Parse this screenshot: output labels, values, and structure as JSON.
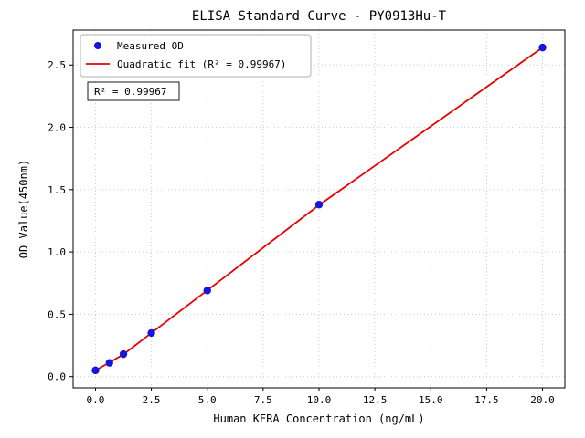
{
  "chart_data": {
    "type": "scatter",
    "title": "ELISA Standard Curve - PY0913Hu-T",
    "xlabel": "Human KERA Concentration (ng/mL)",
    "ylabel": "OD Value(450nm)",
    "xlim": [
      -1,
      21
    ],
    "ylim": [
      -0.09,
      2.78
    ],
    "x_ticks": [
      0,
      2.5,
      5,
      7.5,
      10,
      12.5,
      15,
      17.5,
      20
    ],
    "x_tick_labels": [
      "0.0",
      "2.5",
      "5.0",
      "7.5",
      "10.0",
      "12.5",
      "15.0",
      "17.5",
      "20.0"
    ],
    "y_ticks": [
      0,
      0.5,
      1,
      1.5,
      2,
      2.5
    ],
    "y_tick_labels": [
      "0.0",
      "0.5",
      "1.0",
      "1.5",
      "2.0",
      "2.5"
    ],
    "grid": true,
    "legend_position": "upper left",
    "annotation": "R² = 0.99967",
    "series": [
      {
        "name": "Measured OD",
        "type": "scatter",
        "color": "#1515dd",
        "x": [
          0,
          0.625,
          1.25,
          2.5,
          5,
          10,
          20
        ],
        "y": [
          0.05,
          0.11,
          0.18,
          0.35,
          0.69,
          1.38,
          2.64
        ]
      },
      {
        "name": "Quadratic fit (R² = 0.99967)",
        "type": "line",
        "color": "#e80000",
        "x": [
          0,
          0.625,
          1.25,
          2.5,
          5,
          10,
          20
        ],
        "y": [
          0.05,
          0.113,
          0.178,
          0.35,
          0.692,
          1.376,
          2.64
        ]
      }
    ],
    "colors": {
      "grid": "#cccccc",
      "frame": "#000000",
      "background": "#ffffff"
    }
  }
}
